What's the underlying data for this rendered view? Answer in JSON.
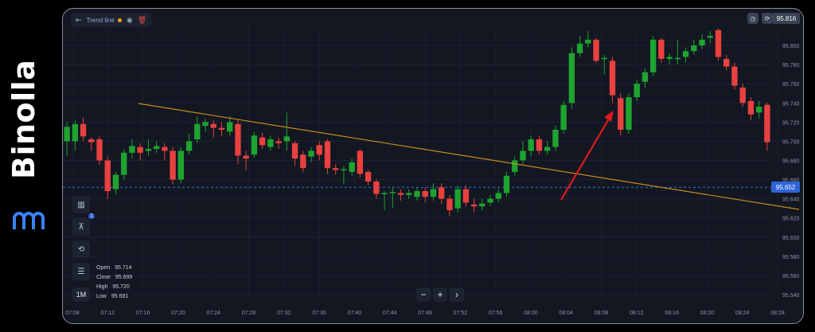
{
  "brand": {
    "name": "Binolla"
  },
  "toolbar": {
    "collapse_icon": "collapse-icon",
    "title": "Trend line",
    "eye_icon": "eye-icon",
    "delete_icon": "trash-icon"
  },
  "price_axis": {
    "labels": [
      "95.800",
      "95.780",
      "95.760",
      "95.740",
      "95.720",
      "95.700",
      "95.680",
      "95.660",
      "95.640",
      "95.620",
      "95.600",
      "95.580",
      "95.560",
      "95.540"
    ],
    "top_price": "95.816",
    "current_price": "95.652"
  },
  "time_axis": {
    "labels": [
      "07:08",
      "07:12",
      "07:16",
      "07:20",
      "07:24",
      "07:28",
      "07:32",
      "07:36",
      "07:40",
      "07:44",
      "07:48",
      "07:52",
      "07:56",
      "08:00",
      "08:04",
      "08:08",
      "08:12",
      "08:16",
      "08:20",
      "08:24",
      "08:28"
    ]
  },
  "ohlc": {
    "open_label": "Open",
    "open": "95.714",
    "close_label": "Close",
    "close": "95.699",
    "high_label": "High",
    "high": "95.720",
    "low_label": "Low",
    "low": "95.681"
  },
  "timeframe": "1M",
  "zoom": {
    "minus": "−",
    "plus": "+",
    "next": "›"
  },
  "tools": [
    {
      "name": "candles-icon"
    },
    {
      "name": "drawing-compass-icon",
      "badge": "1"
    },
    {
      "name": "shapes-icon"
    },
    {
      "name": "settings-sliders-icon"
    }
  ],
  "colors": {
    "up": "#1fa32f",
    "down": "#e8413f",
    "trend": "#c98a1e",
    "arrow": "#e01a1a",
    "current_line": "#3b6fe0"
  },
  "chart_data": {
    "type": "candlestick",
    "y_range": [
      95.535,
      95.82
    ],
    "candles": [
      {
        "o": 95.7,
        "c": 95.715,
        "h": 95.72,
        "l": 95.685
      },
      {
        "o": 95.7,
        "c": 95.718,
        "h": 95.722,
        "l": 95.69
      },
      {
        "o": 95.718,
        "c": 95.705,
        "h": 95.725,
        "l": 95.7
      },
      {
        "o": 95.702,
        "c": 95.699,
        "h": 95.704,
        "l": 95.69
      },
      {
        "o": 95.702,
        "c": 95.68,
        "h": 95.705,
        "l": 95.675
      },
      {
        "o": 95.68,
        "c": 95.648,
        "h": 95.684,
        "l": 95.64
      },
      {
        "o": 95.65,
        "c": 95.665,
        "h": 95.668,
        "l": 95.645
      },
      {
        "o": 95.665,
        "c": 95.688,
        "h": 95.692,
        "l": 95.66
      },
      {
        "o": 95.688,
        "c": 95.695,
        "h": 95.702,
        "l": 95.682
      },
      {
        "o": 95.694,
        "c": 95.688,
        "h": 95.698,
        "l": 95.68
      },
      {
        "o": 95.69,
        "c": 95.692,
        "h": 95.702,
        "l": 95.685
      },
      {
        "o": 95.692,
        "c": 95.695,
        "h": 95.7,
        "l": 95.688
      },
      {
        "o": 95.694,
        "c": 95.69,
        "h": 95.698,
        "l": 95.68
      },
      {
        "o": 95.69,
        "c": 95.66,
        "h": 95.694,
        "l": 95.655
      },
      {
        "o": 95.66,
        "c": 95.69,
        "h": 95.694,
        "l": 95.656
      },
      {
        "o": 95.69,
        "c": 95.7,
        "h": 95.708,
        "l": 95.686
      },
      {
        "o": 95.702,
        "c": 95.718,
        "h": 95.726,
        "l": 95.698
      },
      {
        "o": 95.716,
        "c": 95.72,
        "h": 95.724,
        "l": 95.71
      },
      {
        "o": 95.718,
        "c": 95.714,
        "h": 95.722,
        "l": 95.704
      },
      {
        "o": 95.714,
        "c": 95.712,
        "h": 95.72,
        "l": 95.705
      },
      {
        "o": 95.71,
        "c": 95.72,
        "h": 95.726,
        "l": 95.706
      },
      {
        "o": 95.718,
        "c": 95.685,
        "h": 95.722,
        "l": 95.676
      },
      {
        "o": 95.685,
        "c": 95.682,
        "h": 95.69,
        "l": 95.67
      },
      {
        "o": 95.686,
        "c": 95.706,
        "h": 95.71,
        "l": 95.683
      },
      {
        "o": 95.704,
        "c": 95.696,
        "h": 95.709,
        "l": 95.692
      },
      {
        "o": 95.694,
        "c": 95.702,
        "h": 95.706,
        "l": 95.69
      },
      {
        "o": 95.7,
        "c": 95.698,
        "h": 95.704,
        "l": 95.692
      },
      {
        "o": 95.7,
        "c": 95.705,
        "h": 95.73,
        "l": 95.69
      },
      {
        "o": 95.698,
        "c": 95.682,
        "h": 95.7,
        "l": 95.674
      },
      {
        "o": 95.686,
        "c": 95.672,
        "h": 95.69,
        "l": 95.668
      },
      {
        "o": 95.684,
        "c": 95.69,
        "h": 95.694,
        "l": 95.678
      },
      {
        "o": 95.696,
        "c": 95.686,
        "h": 95.7,
        "l": 95.68
      },
      {
        "o": 95.7,
        "c": 95.672,
        "h": 95.702,
        "l": 95.666
      },
      {
        "o": 95.672,
        "c": 95.67,
        "h": 95.676,
        "l": 95.665
      },
      {
        "o": 95.67,
        "c": 95.671,
        "h": 95.674,
        "l": 95.655
      },
      {
        "o": 95.668,
        "c": 95.678,
        "h": 95.682,
        "l": 95.664
      },
      {
        "o": 95.69,
        "c": 95.666,
        "h": 95.692,
        "l": 95.662
      },
      {
        "o": 95.668,
        "c": 95.658,
        "h": 95.67,
        "l": 95.654
      },
      {
        "o": 95.658,
        "c": 95.645,
        "h": 95.66,
        "l": 95.64
      },
      {
        "o": 95.645,
        "c": 95.646,
        "h": 95.648,
        "l": 95.628
      },
      {
        "o": 95.646,
        "c": 95.647,
        "h": 95.652,
        "l": 95.63
      },
      {
        "o": 95.646,
        "c": 95.644,
        "h": 95.65,
        "l": 95.638
      },
      {
        "o": 95.644,
        "c": 95.646,
        "h": 95.65,
        "l": 95.64
      },
      {
        "o": 95.642,
        "c": 95.648,
        "h": 95.652,
        "l": 95.638
      },
      {
        "o": 95.648,
        "c": 95.642,
        "h": 95.652,
        "l": 95.636
      },
      {
        "o": 95.642,
        "c": 95.65,
        "h": 95.656,
        "l": 95.638
      },
      {
        "o": 95.652,
        "c": 95.64,
        "h": 95.656,
        "l": 95.634
      },
      {
        "o": 95.64,
        "c": 95.628,
        "h": 95.644,
        "l": 95.622
      },
      {
        "o": 95.63,
        "c": 95.65,
        "h": 95.654,
        "l": 95.626
      },
      {
        "o": 95.65,
        "c": 95.636,
        "h": 95.654,
        "l": 95.632
      },
      {
        "o": 95.634,
        "c": 95.632,
        "h": 95.64,
        "l": 95.626
      },
      {
        "o": 95.632,
        "c": 95.635,
        "h": 95.64,
        "l": 95.628
      },
      {
        "o": 95.636,
        "c": 95.64,
        "h": 95.644,
        "l": 95.632
      },
      {
        "o": 95.64,
        "c": 95.646,
        "h": 95.65,
        "l": 95.636
      },
      {
        "o": 95.646,
        "c": 95.664,
        "h": 95.668,
        "l": 95.642
      },
      {
        "o": 95.668,
        "c": 95.68,
        "h": 95.684,
        "l": 95.664
      },
      {
        "o": 95.68,
        "c": 95.69,
        "h": 95.7,
        "l": 95.676
      },
      {
        "o": 95.69,
        "c": 95.702,
        "h": 95.706,
        "l": 95.684
      },
      {
        "o": 95.702,
        "c": 95.69,
        "h": 95.706,
        "l": 95.686
      },
      {
        "o": 95.69,
        "c": 95.694,
        "h": 95.7,
        "l": 95.686
      },
      {
        "o": 95.694,
        "c": 95.712,
        "h": 95.716,
        "l": 95.69
      },
      {
        "o": 95.712,
        "c": 95.738,
        "h": 95.742,
        "l": 95.708
      },
      {
        "o": 95.74,
        "c": 95.792,
        "h": 95.798,
        "l": 95.734
      },
      {
        "o": 95.792,
        "c": 95.802,
        "h": 95.81,
        "l": 95.788
      },
      {
        "o": 95.802,
        "c": 95.806,
        "h": 95.815,
        "l": 95.798
      },
      {
        "o": 95.806,
        "c": 95.784,
        "h": 95.808,
        "l": 95.782
      },
      {
        "o": 95.786,
        "c": 95.787,
        "h": 95.79,
        "l": 95.77
      },
      {
        "o": 95.784,
        "c": 95.748,
        "h": 95.788,
        "l": 95.74
      },
      {
        "o": 95.745,
        "c": 95.712,
        "h": 95.75,
        "l": 95.706
      },
      {
        "o": 95.712,
        "c": 95.746,
        "h": 95.75,
        "l": 95.708
      },
      {
        "o": 95.746,
        "c": 95.76,
        "h": 95.764,
        "l": 95.742
      },
      {
        "o": 95.762,
        "c": 95.772,
        "h": 95.776,
        "l": 95.756
      },
      {
        "o": 95.772,
        "c": 95.806,
        "h": 95.81,
        "l": 95.768
      },
      {
        "o": 95.806,
        "c": 95.786,
        "h": 95.808,
        "l": 95.782
      },
      {
        "o": 95.786,
        "c": 95.788,
        "h": 95.792,
        "l": 95.78
      },
      {
        "o": 95.786,
        "c": 95.787,
        "h": 95.806,
        "l": 95.78
      },
      {
        "o": 95.788,
        "c": 95.794,
        "h": 95.798,
        "l": 95.782
      },
      {
        "o": 95.794,
        "c": 95.8,
        "h": 95.806,
        "l": 95.79
      },
      {
        "o": 95.8,
        "c": 95.806,
        "h": 95.812,
        "l": 95.796
      },
      {
        "o": 95.808,
        "c": 95.81,
        "h": 95.815,
        "l": 95.802
      },
      {
        "o": 95.816,
        "c": 95.788,
        "h": 95.818,
        "l": 95.784
      },
      {
        "o": 95.786,
        "c": 95.778,
        "h": 95.79,
        "l": 95.774
      },
      {
        "o": 95.778,
        "c": 95.758,
        "h": 95.782,
        "l": 95.754
      },
      {
        "o": 95.756,
        "c": 95.74,
        "h": 95.76,
        "l": 95.736
      },
      {
        "o": 95.742,
        "c": 95.728,
        "h": 95.746,
        "l": 95.722
      },
      {
        "o": 95.73,
        "c": 95.736,
        "h": 95.742,
        "l": 95.724
      },
      {
        "o": 95.738,
        "c": 95.699,
        "h": 95.74,
        "l": 95.69
      }
    ]
  }
}
